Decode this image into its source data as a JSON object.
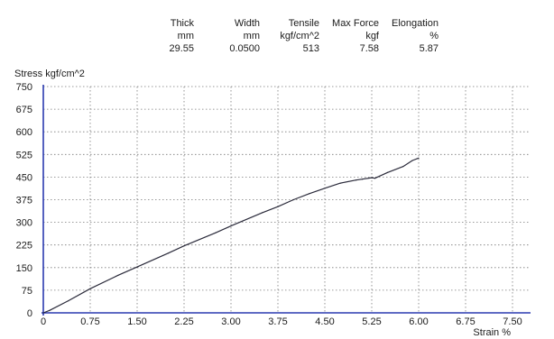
{
  "results_table": {
    "columns": [
      {
        "header": "Thick",
        "unit": "mm",
        "value": "29.55"
      },
      {
        "header": "Width",
        "unit": "mm",
        "value": "0.0500"
      },
      {
        "header": "Tensile",
        "unit": "kgf/cm^2",
        "value": "513"
      },
      {
        "header": "Max Force",
        "unit": "kgf",
        "value": "7.58"
      },
      {
        "header": "Elongation",
        "unit": "%",
        "value": "5.87"
      }
    ]
  },
  "chart_data": {
    "type": "line",
    "ylabel": "Stress kgf/cm^2",
    "xlabel": "Strain %",
    "xlim": [
      0,
      7.5
    ],
    "ylim": [
      0,
      750
    ],
    "x_ticks": [
      "0",
      "0.75",
      "1.50",
      "2.25",
      "3.00",
      "3.75",
      "4.50",
      "5.25",
      "6.00",
      "6.75",
      "7.50"
    ],
    "y_ticks": [
      "0",
      "75",
      "150",
      "225",
      "300",
      "375",
      "450",
      "525",
      "600",
      "675",
      "750"
    ],
    "grid": true,
    "colors": {
      "curve": "#2a2a3a",
      "axis": "#2b3bb0",
      "grid": "#7a7a7a"
    },
    "series": [
      {
        "x": [
          0.0,
          0.1,
          0.4,
          0.75,
          1.2,
          1.5,
          2.0,
          2.25,
          2.75,
          3.0,
          3.5,
          3.75,
          4.0,
          4.25,
          4.5,
          4.75,
          5.0,
          5.1,
          5.25,
          5.3,
          5.5,
          5.75,
          5.9,
          6.0
        ],
        "y": [
          0,
          8,
          40,
          80,
          125,
          152,
          198,
          222,
          265,
          288,
          332,
          352,
          375,
          395,
          413,
          430,
          440,
          443,
          448,
          446,
          465,
          485,
          505,
          513
        ]
      }
    ]
  }
}
